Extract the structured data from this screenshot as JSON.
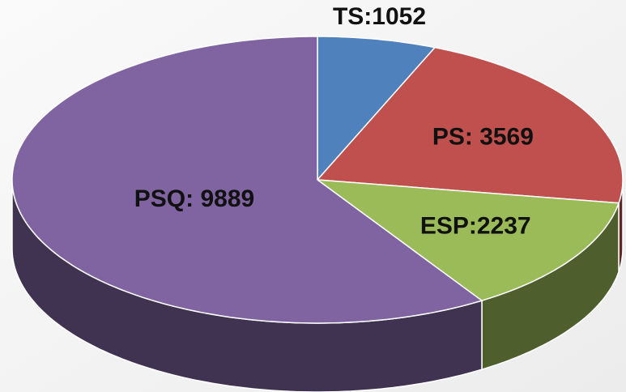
{
  "chart_data": {
    "type": "pie",
    "values": [
      1052,
      3569,
      2237,
      9889
    ],
    "value_labels": [
      "TS:1052",
      "PS: 3569",
      "ESP:2237",
      "PSQ: 9889"
    ],
    "colors": [
      "#4f81bd",
      "#c0504d",
      "#9bbb59",
      "#8064a2"
    ]
  }
}
